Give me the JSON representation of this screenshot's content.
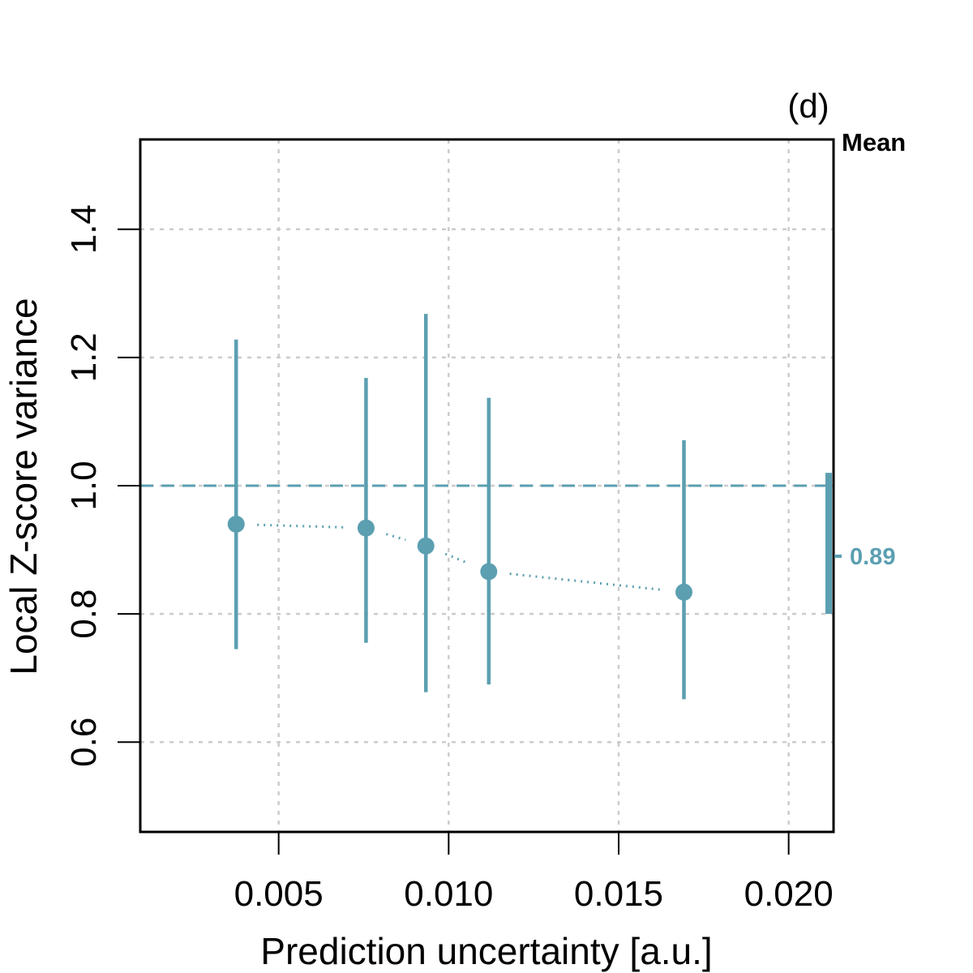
{
  "chart_data": {
    "type": "scatter",
    "panel_label": "(d)",
    "xlabel": "Prediction uncertainty [a.u.]",
    "ylabel": "Local Z-score variance",
    "xlim": [
      0.00093,
      0.02132
    ],
    "ylim": [
      0.46,
      1.54
    ],
    "x_ticks": [
      0.005,
      0.01,
      0.015,
      0.02
    ],
    "x_tick_labels": [
      "0.005",
      "0.010",
      "0.015",
      "0.020"
    ],
    "y_ticks": [
      0.6,
      0.8,
      1.0,
      1.2,
      1.4
    ],
    "y_tick_labels": [
      "0.6",
      "0.8",
      "1.0",
      "1.2",
      "1.4"
    ],
    "grid": true,
    "reference_line": 1.0,
    "series": [
      {
        "name": "binned variance",
        "color": "#5b9fb1",
        "points": [
          {
            "x": 0.00375,
            "y": 0.94,
            "lower": 0.745,
            "upper": 1.228
          },
          {
            "x": 0.00757,
            "y": 0.934,
            "lower": 0.755,
            "upper": 1.168
          },
          {
            "x": 0.00933,
            "y": 0.906,
            "lower": 0.678,
            "upper": 1.268
          },
          {
            "x": 0.01118,
            "y": 0.866,
            "lower": 0.69,
            "upper": 1.137
          },
          {
            "x": 0.01692,
            "y": 0.834,
            "lower": 0.667,
            "upper": 1.071
          }
        ]
      }
    ],
    "mean": {
      "title": "Mean",
      "value": 0.89,
      "label": "0.89",
      "lower": 0.8,
      "upper": 1.02
    }
  }
}
